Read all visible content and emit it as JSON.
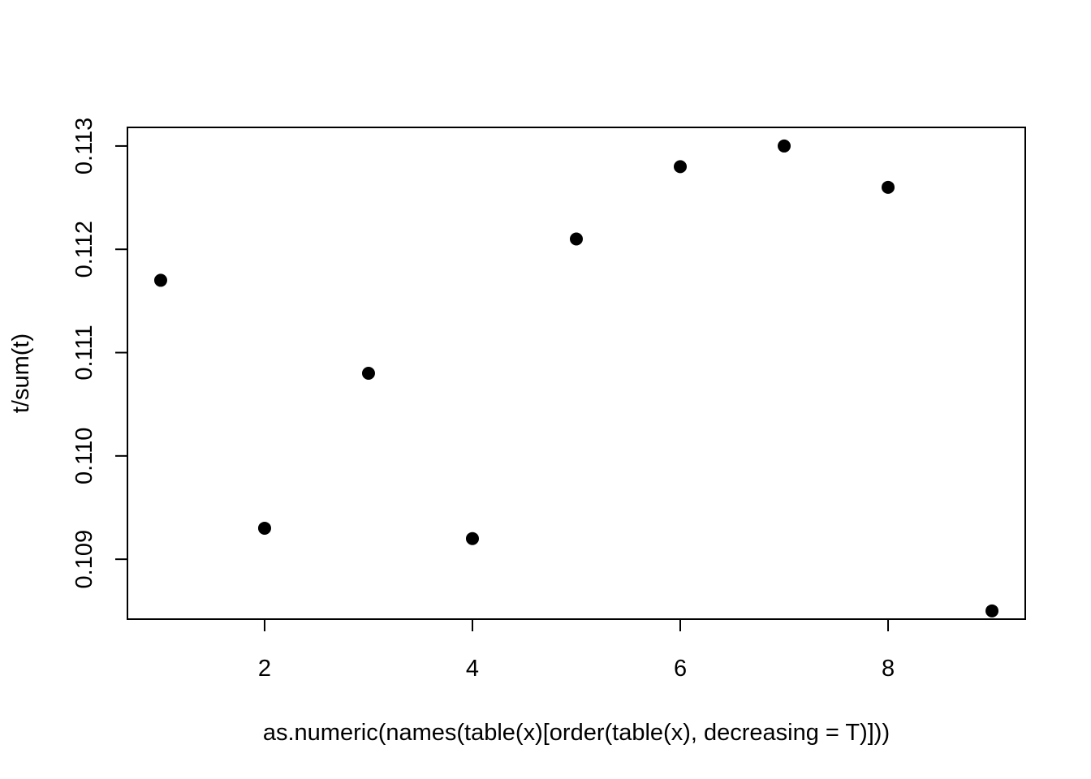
{
  "chart_data": {
    "type": "scatter",
    "title": "",
    "xlabel": "as.numeric(names(table(x)[order(table(x), decreasing = T)]))",
    "ylabel": "t/sum(t)",
    "x": [
      1,
      2,
      3,
      4,
      5,
      6,
      7,
      8,
      9
    ],
    "y": [
      0.1117,
      0.1093,
      0.1108,
      0.1092,
      0.1121,
      0.1128,
      0.113,
      0.1126,
      0.1085
    ],
    "xlim": [
      0.68,
      9.32
    ],
    "ylim": [
      0.10842,
      0.11318
    ],
    "x_ticks": [
      2,
      4,
      6,
      8
    ],
    "x_tick_labels": [
      "2",
      "4",
      "6",
      "8"
    ],
    "y_ticks": [
      0.109,
      0.11,
      0.111,
      0.112,
      0.113
    ],
    "y_tick_labels": [
      "0.109",
      "0.110",
      "0.111",
      "0.112",
      "0.113"
    ],
    "grid": false,
    "legend": "none",
    "colors": {
      "points": "#000000",
      "axes": "#000000",
      "background": "#ffffff"
    }
  }
}
